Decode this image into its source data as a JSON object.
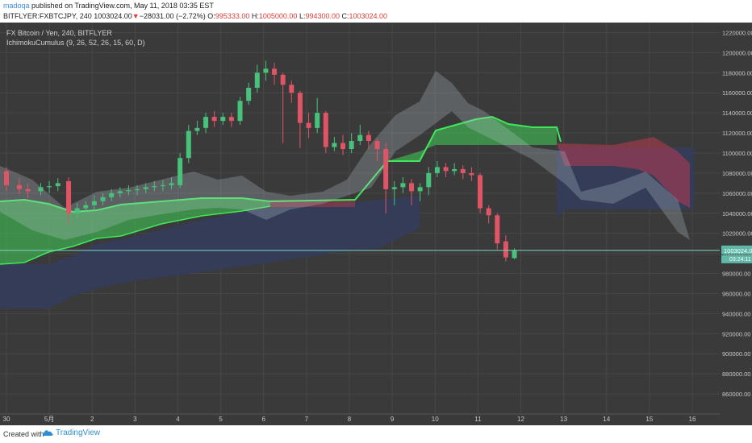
{
  "header": {
    "user": "madoqa",
    "published_text": "published on TradingView.com, May 11, 2018 03:35 EST",
    "symbol_line_prefix": "BITFLYER:FXBTCJPY, 240 1003024.00",
    "change_text": "−28031.00 (−2.72%)",
    "o_label": "O:",
    "o_value": "995333.00",
    "h_label": "H:",
    "h_value": "1005000.00",
    "l_label": "L:",
    "l_value": "994300.00",
    "c_label": "C:",
    "c_value": "1003024.00"
  },
  "legend": {
    "series_title": "FX Bitcoin / Yen, 240, BITFLYER",
    "indicator": "IchimokuCumulus (9, 26, 52, 26, 15, 60, D)"
  },
  "footer": {
    "created_with": "Created with",
    "brand": "TradingView"
  },
  "colors": {
    "background": "#3a3a3a",
    "up": "#48c27b",
    "down": "#e05566",
    "grid": "#474747",
    "green_cloud": "#3fcf55",
    "red_cloud": "#c23a50",
    "navy_cloud": "#343c5a",
    "price_line": "#7fd6c8"
  },
  "chart_data": {
    "type": "candlestick",
    "ylim": [
      840000,
      1230000
    ],
    "y_ticks": [
      860000,
      880000,
      900000,
      920000,
      940000,
      960000,
      980000,
      1000000,
      1020000,
      1040000,
      1060000,
      1080000,
      1100000,
      1120000,
      1140000,
      1160000,
      1180000,
      1200000,
      1220000
    ],
    "y_tick_labels": [
      "860000.00",
      "880000.00",
      "900000.00",
      "920000.00",
      "940000.00",
      "960000.00",
      "980000.00",
      "1000000.00",
      "1020000.00",
      "1040000.00",
      "1060000.00",
      "1080000.00",
      "1100000.00",
      "1120000.00",
      "1140000.00",
      "1160000.00",
      "1180000.00",
      "1200000.00",
      "1220000.00"
    ],
    "x_range": [
      0,
      16.3
    ],
    "x_ticks": [
      0,
      1,
      2,
      3,
      4,
      5,
      6,
      7,
      8,
      9,
      10,
      11,
      12,
      13,
      14,
      15,
      16
    ],
    "x_tick_labels": [
      "30",
      "5月",
      "2",
      "3",
      "4",
      "5",
      "6",
      "7",
      "8",
      "9",
      "10",
      "11",
      "12",
      "13",
      "14",
      "15",
      "16"
    ],
    "last_price": 1003024,
    "last_price_label": "1003024.00",
    "countdown_label": "03:24:11",
    "candles": [
      [
        0.0,
        1082000,
        1068000,
        1086000,
        1062000
      ],
      [
        0.3,
        1068000,
        1064000,
        1075000,
        1059000
      ],
      [
        0.5,
        1064000,
        1062000,
        1070000,
        1055000
      ],
      [
        0.8,
        1062000,
        1066000,
        1070000,
        1058000
      ],
      [
        1.0,
        1066000,
        1067000,
        1072000,
        1060000
      ],
      [
        1.2,
        1067000,
        1070000,
        1075000,
        1062000
      ],
      [
        1.45,
        1072000,
        1040000,
        1076000,
        1030000
      ],
      [
        1.65,
        1040000,
        1045000,
        1050000,
        1035000
      ],
      [
        1.85,
        1045000,
        1048000,
        1052000,
        1040000
      ],
      [
        2.05,
        1048000,
        1052000,
        1058000,
        1043000
      ],
      [
        2.25,
        1052000,
        1056000,
        1060000,
        1048000
      ],
      [
        2.45,
        1056000,
        1060000,
        1064000,
        1052000
      ],
      [
        2.65,
        1060000,
        1062000,
        1066000,
        1056000
      ],
      [
        2.85,
        1062000,
        1063000,
        1068000,
        1058000
      ],
      [
        3.05,
        1063000,
        1064000,
        1068000,
        1058000
      ],
      [
        3.25,
        1064000,
        1066000,
        1070000,
        1060000
      ],
      [
        3.45,
        1066000,
        1067000,
        1072000,
        1062000
      ],
      [
        3.65,
        1067000,
        1068000,
        1073000,
        1062000
      ],
      [
        3.85,
        1068000,
        1070000,
        1076000,
        1064000
      ],
      [
        4.05,
        1068000,
        1095000,
        1100000,
        1065000
      ],
      [
        4.25,
        1095000,
        1122000,
        1128000,
        1090000
      ],
      [
        4.45,
        1122000,
        1125000,
        1132000,
        1118000
      ],
      [
        4.65,
        1125000,
        1136000,
        1140000,
        1120000
      ],
      [
        4.85,
        1136000,
        1132000,
        1142000,
        1126000
      ],
      [
        5.05,
        1132000,
        1136000,
        1140000,
        1128000
      ],
      [
        5.25,
        1136000,
        1132000,
        1140000,
        1126000
      ],
      [
        5.45,
        1132000,
        1152000,
        1156000,
        1128000
      ],
      [
        5.65,
        1152000,
        1165000,
        1170000,
        1148000
      ],
      [
        5.85,
        1165000,
        1180000,
        1188000,
        1160000
      ],
      [
        6.05,
        1180000,
        1184000,
        1192000,
        1172000
      ],
      [
        6.25,
        1184000,
        1178000,
        1190000,
        1168000
      ],
      [
        6.45,
        1178000,
        1168000,
        1180000,
        1110000
      ],
      [
        6.65,
        1168000,
        1160000,
        1172000,
        1150000
      ],
      [
        6.85,
        1160000,
        1130000,
        1162000,
        1105000
      ],
      [
        7.05,
        1130000,
        1125000,
        1140000,
        1115000
      ],
      [
        7.25,
        1125000,
        1140000,
        1155000,
        1120000
      ],
      [
        7.45,
        1140000,
        1106000,
        1142000,
        1100000
      ],
      [
        7.65,
        1106000,
        1110000,
        1116000,
        1102000
      ],
      [
        7.85,
        1110000,
        1104000,
        1118000,
        1098000
      ],
      [
        8.05,
        1104000,
        1112000,
        1120000,
        1100000
      ],
      [
        8.25,
        1112000,
        1118000,
        1128000,
        1108000
      ],
      [
        8.45,
        1118000,
        1112000,
        1122000,
        1104000
      ],
      [
        8.65,
        1112000,
        1104000,
        1114000,
        1092000
      ],
      [
        8.85,
        1104000,
        1064000,
        1110000,
        1040000
      ],
      [
        9.05,
        1064000,
        1066000,
        1072000,
        1048000
      ],
      [
        9.25,
        1066000,
        1070000,
        1076000,
        1060000
      ],
      [
        9.45,
        1070000,
        1062000,
        1074000,
        1048000
      ],
      [
        9.65,
        1062000,
        1066000,
        1070000,
        1052000
      ],
      [
        9.85,
        1066000,
        1080000,
        1086000,
        1058000
      ],
      [
        10.05,
        1080000,
        1086000,
        1092000,
        1076000
      ],
      [
        10.25,
        1086000,
        1082000,
        1090000,
        1076000
      ],
      [
        10.45,
        1082000,
        1084000,
        1090000,
        1078000
      ],
      [
        10.65,
        1084000,
        1080000,
        1088000,
        1074000
      ],
      [
        10.85,
        1080000,
        1078000,
        1086000,
        1072000
      ],
      [
        11.05,
        1078000,
        1045000,
        1080000,
        1040000
      ],
      [
        11.25,
        1045000,
        1038000,
        1048000,
        1030000
      ],
      [
        11.45,
        1038000,
        1010000,
        1040000,
        1004000
      ],
      [
        11.65,
        1012000,
        996000,
        1018000,
        992000
      ],
      [
        11.85,
        995333,
        1003024,
        1005000,
        994300
      ]
    ]
  }
}
